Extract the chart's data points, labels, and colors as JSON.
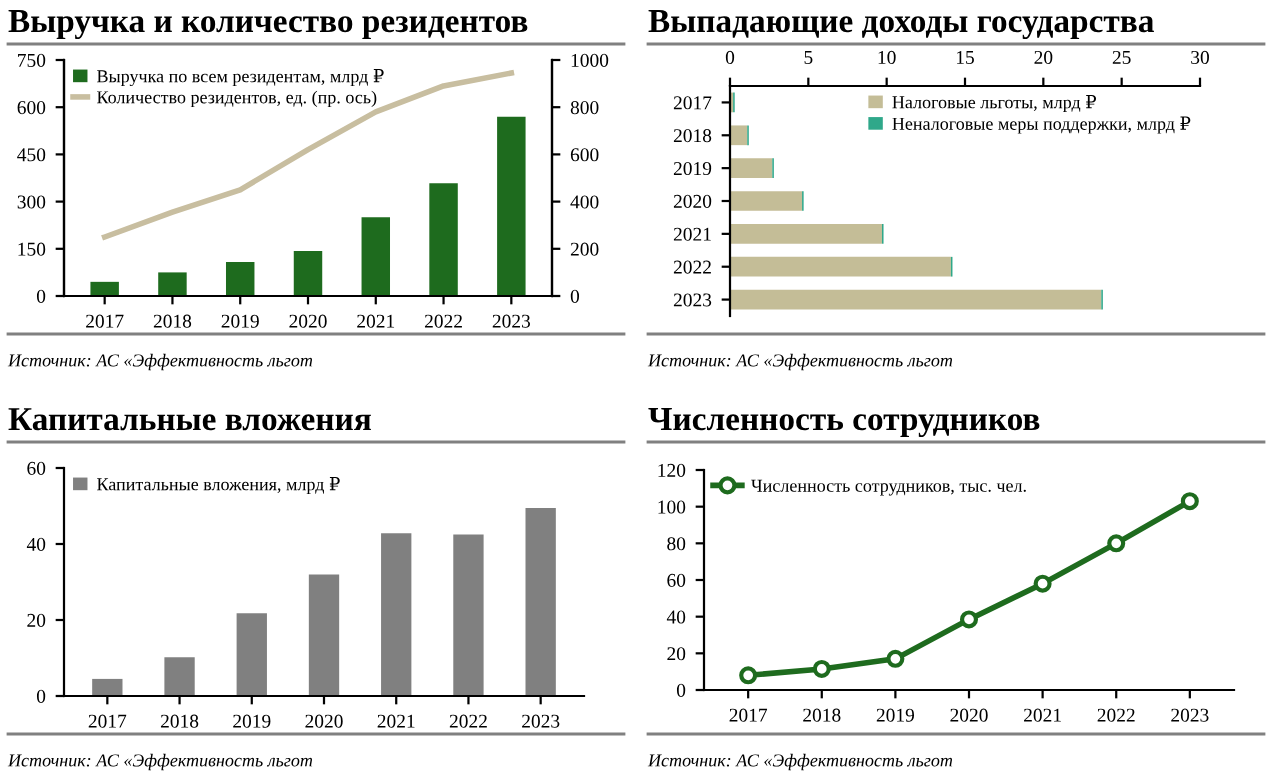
{
  "chart_data": [
    {
      "type": "bar",
      "title": "Выручка и количество резидентов",
      "annotations": [
        "Источник: АС «Эффективность льгот"
      ],
      "categories": [
        "2017",
        "2018",
        "2019",
        "2020",
        "2021",
        "2022",
        "2023"
      ],
      "ylim": [
        0,
        750
      ],
      "yticks": [
        0,
        150,
        300,
        450,
        600,
        750
      ],
      "y2lim": [
        0,
        1000
      ],
      "y2ticks": [
        0,
        200,
        400,
        600,
        800,
        1000
      ],
      "legend": "top left",
      "series": [
        {
          "name": "Выручка по всем резидентам, млрд ₽",
          "color": "#1e6b1e",
          "values": [
            45,
            75,
            108,
            143,
            250,
            358,
            570
          ]
        },
        {
          "name": "Количество резидентов, ед. (пр. ось)",
          "type": "line",
          "axis": "y2",
          "color": "#c8bea0",
          "values": [
            250,
            355,
            450,
            620,
            780,
            890,
            945
          ]
        }
      ]
    },
    {
      "type": "bar",
      "title": "Выпадающие доходы государства",
      "annotations": [
        "Источник: АС «Эффективность льгот"
      ],
      "orientation": "horizontal",
      "stacked": true,
      "categories": [
        "2017",
        "2018",
        "2019",
        "2020",
        "2021",
        "2022",
        "2023"
      ],
      "xlim": [
        0,
        30
      ],
      "xticks": [
        0,
        5,
        10,
        15,
        20,
        25,
        30
      ],
      "legend": "top right",
      "series": [
        {
          "name": "Налоговые льготы, млрд ₽",
          "color": "#c4bd97",
          "values": [
            0.2,
            1.1,
            2.7,
            4.6,
            9.7,
            14.1,
            23.7
          ]
        },
        {
          "name": "Неналоговые меры поддержки, млрд ₽",
          "color": "#2fa88a",
          "values": [
            0.1,
            0.1,
            0.1,
            0.1,
            0.1,
            0.1,
            0.1
          ]
        }
      ]
    },
    {
      "type": "bar",
      "title": "Капитальные вложения",
      "annotations": [
        "Источник: АС «Эффективность льгот"
      ],
      "categories": [
        "2017",
        "2018",
        "2019",
        "2020",
        "2021",
        "2022",
        "2023"
      ],
      "ylim": [
        0,
        60
      ],
      "yticks": [
        0,
        20,
        40,
        60
      ],
      "legend": "top left",
      "series": [
        {
          "name": "Капитальные вложения, млрд ₽",
          "color": "#808080",
          "values": [
            4.5,
            10.2,
            21.8,
            32,
            42.8,
            42.5,
            49.5
          ]
        }
      ]
    },
    {
      "type": "line",
      "title": "Численность сотрудников",
      "annotations": [
        "Источник: АС «Эффективность льгот"
      ],
      "categories": [
        "2017",
        "2018",
        "2019",
        "2020",
        "2021",
        "2022",
        "2023"
      ],
      "ylim": [
        0,
        120
      ],
      "yticks": [
        0,
        20,
        40,
        60,
        80,
        100,
        120
      ],
      "legend": "top left",
      "marker": "circle",
      "series": [
        {
          "name": "Численность сотрудников, тыс. чел.",
          "color": "#1e6b1e",
          "values": [
            8,
            11.5,
            17,
            38.5,
            58,
            80,
            103
          ]
        }
      ]
    }
  ]
}
